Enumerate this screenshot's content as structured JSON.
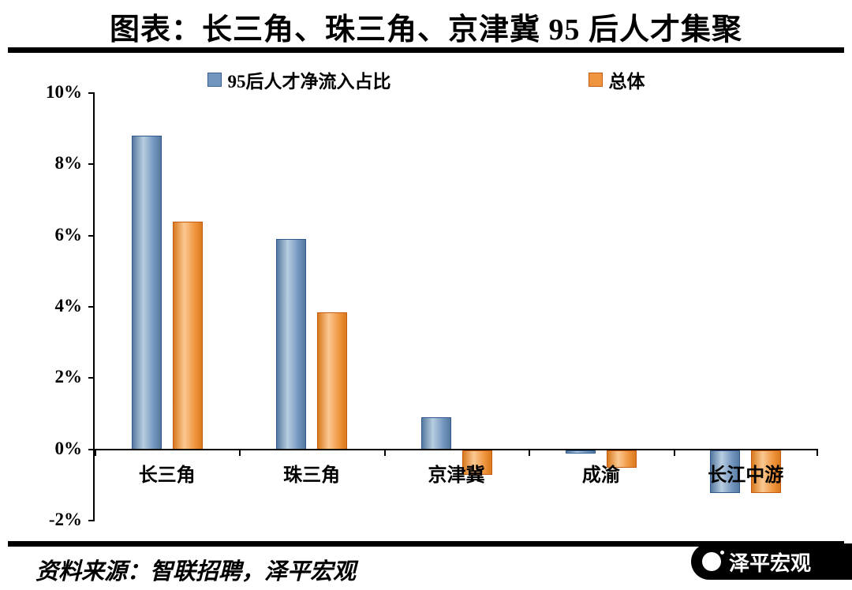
{
  "title": "图表：长三角、珠三角、京津冀 95 后人才集聚",
  "legend": [
    {
      "label": "95后人才净流入占比",
      "color": "#7396bf",
      "border": "#3a5f94"
    },
    {
      "label": "总体",
      "color": "#f0953f",
      "border": "#c55a11"
    }
  ],
  "source": "资料来源：智联招聘，泽平宏观",
  "badge": {
    "label": "泽平宏观"
  },
  "chart_data": {
    "type": "bar",
    "title": "图表：长三角、珠三角、京津冀 95 后人才集聚",
    "categories": [
      "长三角",
      "珠三角",
      "京津冀",
      "成渝",
      "长江中游"
    ],
    "series": [
      {
        "name": "95后人才净流入占比",
        "values": [
          8.8,
          5.9,
          0.9,
          -0.1,
          -1.2
        ],
        "color": "#7396bf",
        "light": "#b9cde0",
        "dark": "#56799f",
        "border": "#2f5a8f"
      },
      {
        "name": "总体",
        "values": [
          6.4,
          3.85,
          -0.7,
          -0.5,
          -1.2
        ],
        "color": "#f0953f",
        "light": "#fac892",
        "dark": "#d97a1e",
        "border": "#c55a11"
      }
    ],
    "xlabel": "",
    "ylabel": "",
    "ylim": [
      -2,
      10
    ],
    "ytick_step": 2,
    "ytick_suffix": "%",
    "grid": false,
    "legend_position": "top"
  }
}
